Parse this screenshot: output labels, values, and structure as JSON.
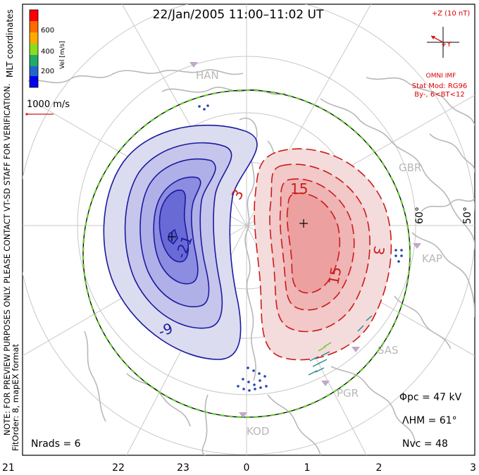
{
  "title": "22/Jan/2005 11:00–11:02 UT",
  "coordinate_label": "MLT coordinates",
  "side_note": "NOTE: FOR PREVIEW PURPOSES ONLY. PLEASE CONTACT VT-SD STAFF FOR VERIFICATION.",
  "fit_order": "FitOrder: 8, mapEX format",
  "colorbar": {
    "label": "Vel [m/s]",
    "ticks": [
      "600",
      "400",
      "200"
    ],
    "colors": [
      "#ff0000",
      "#ff6a00",
      "#ffaa00",
      "#88dd22",
      "#22aa66",
      "#2266cc",
      "#0000ee"
    ]
  },
  "scale_vector": "1000 m/s",
  "imf": {
    "z_label": "+Z (10 nT)",
    "y_label": "+Y",
    "source": "OMNI IMF",
    "model": "Stat Mod: RG96",
    "condition": "By-, 6<BT<12"
  },
  "stations": [
    "HAN",
    "GBR",
    "KAP",
    "SAS",
    "PGR",
    "KOD"
  ],
  "latitude_labels": [
    "60°",
    "50°"
  ],
  "contour_labels": {
    "negative": [
      "-21",
      "-9"
    ],
    "positive": [
      "3",
      "15",
      "15",
      "3"
    ]
  },
  "stats": {
    "phi_pc": "Φpc = 47 kV",
    "lambda_hm": "ΛHM = 61°",
    "n_vc": "Nvc = 48",
    "n_rads": "Nrads = 6"
  },
  "mlt_ticks": [
    "21",
    "22",
    "23",
    "0",
    "1",
    "2",
    "3"
  ],
  "colors": {
    "negative_cell": "#1a1aa0",
    "positive_cell": "#cc1a1a",
    "coast": "#b8b8b8",
    "grid": "#c8c8c8",
    "imf_text": "#dd0000"
  }
}
